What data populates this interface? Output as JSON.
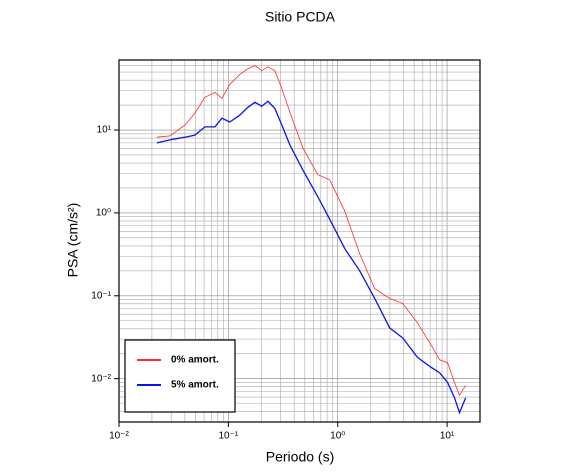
{
  "chart_data": {
    "type": "line",
    "title": "Sitio PCDA",
    "x_label": "Periodo (s)",
    "y_label": "PSA (cm/s²)",
    "x": [
      0.0222,
      0.0292,
      0.0401,
      0.0494,
      0.061,
      0.0753,
      0.0873,
      0.103,
      0.127,
      0.151,
      0.175,
      0.202,
      0.23,
      0.266,
      0.308,
      0.365,
      0.479,
      0.656,
      0.845,
      1.16,
      1.59,
      2.18,
      2.99,
      3.93,
      5.38,
      7.21,
      8.55,
      10.1,
      11.7,
      13.0,
      14.8
    ],
    "series": [
      {
        "name": "0% amort.",
        "color": "#ff2a2a",
        "width": 0.8,
        "values": [
          8.2,
          8.5,
          11.5,
          16.0,
          24.8,
          28.4,
          24.1,
          35.5,
          46.7,
          55,
          60,
          52,
          58,
          52,
          31.8,
          16.4,
          6.1,
          2.9,
          2.5,
          1.05,
          0.32,
          0.122,
          0.093,
          0.081,
          0.047,
          0.025,
          0.0169,
          0.0156,
          0.009,
          0.0063,
          0.0083
        ]
      },
      {
        "name": "5% amort.",
        "color": "#0a14e6",
        "width": 1.3,
        "values": [
          7.0,
          7.6,
          8.2,
          8.7,
          10.9,
          10.9,
          13.9,
          12.5,
          15.1,
          18.8,
          21.6,
          19.4,
          22.2,
          18.3,
          11.5,
          6.6,
          3.3,
          1.58,
          0.84,
          0.37,
          0.2,
          0.093,
          0.041,
          0.031,
          0.018,
          0.0136,
          0.0118,
          0.009,
          0.0059,
          0.0039,
          0.0059
        ]
      }
    ],
    "xlim": [
      0.01,
      20
    ],
    "ylim": [
      0.003,
      70
    ],
    "log_x": true,
    "log_y": true,
    "grid": "minor",
    "legend": "lower left",
    "xticks": [
      {
        "value": 0.01,
        "label": "10⁻²"
      },
      {
        "value": 0.1,
        "label": "10⁻¹"
      },
      {
        "value": 1,
        "label": "10⁰"
      },
      {
        "value": 10,
        "label": "10¹"
      }
    ],
    "yticks": [
      {
        "value": 0.01,
        "label": "10⁻²"
      },
      {
        "value": 0.1,
        "label": "10⁻¹"
      },
      {
        "value": 1,
        "label": "10⁰"
      },
      {
        "value": 10,
        "label": "10¹"
      }
    ]
  }
}
